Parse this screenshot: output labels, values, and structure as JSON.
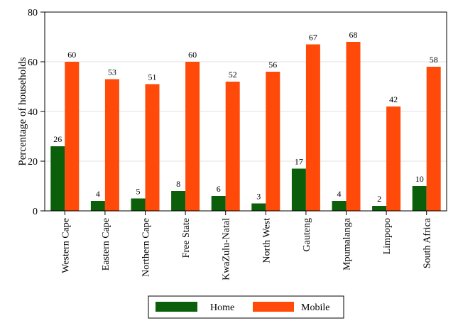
{
  "chart_data": {
    "type": "bar",
    "categories": [
      "Western Cape",
      "Eastern Cape",
      "Northern Cape",
      "Free State",
      "KwaZulu-Natal",
      "North West",
      "Gauteng",
      "Mpumalanga",
      "Limpopo",
      "South Africa"
    ],
    "series": [
      {
        "name": "Home",
        "color": "#0b5f0b",
        "values": [
          26,
          4,
          5,
          8,
          6,
          3,
          17,
          4,
          2,
          10
        ],
        "labels": [
          "26",
          "4",
          "5",
          "8",
          "6",
          "3",
          "17",
          "4",
          "2",
          "10"
        ]
      },
      {
        "name": "Mobile",
        "color": "#ff4a0a",
        "values": [
          60,
          53,
          51,
          60,
          52,
          56,
          67,
          68,
          42,
          58
        ],
        "labels": [
          "60",
          "53",
          "51",
          "60",
          "52",
          "56",
          "67",
          "68",
          "42",
          "58"
        ]
      }
    ],
    "title": "",
    "xlabel": "",
    "ylabel": "Percentage of households",
    "ylim": [
      0,
      80
    ],
    "yticks": [
      0,
      20,
      40,
      60,
      80
    ],
    "ytick_labels": [
      "0",
      "20",
      "40",
      "60",
      "80"
    ],
    "grid": true,
    "legend_position": "bottom"
  }
}
